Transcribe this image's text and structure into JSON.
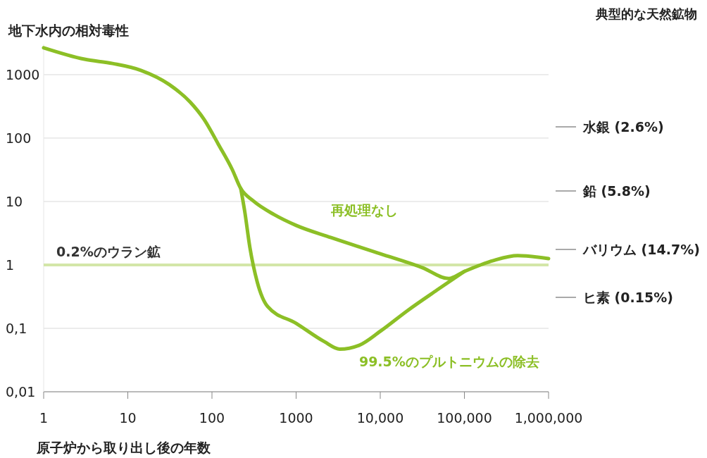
{
  "chart_data": {
    "type": "line",
    "ylabel": "地下水内の相対毒性",
    "xlabel": "原子炉から取り出し後の年数",
    "log": "xy",
    "grid": "y",
    "marker": "none",
    "line_style": "solid",
    "xlim": [
      1,
      1000000
    ],
    "xticks": [
      1,
      10,
      100,
      1000,
      {
        "value": 10000,
        "label": "10,000"
      },
      {
        "value": 100000,
        "label": "100,000"
      },
      {
        "value": 1000000,
        "label": "1,000,000"
      }
    ],
    "ylim": [
      0.01,
      3000
    ],
    "yticks": [
      {
        "value": 0.01,
        "label": "0,01"
      },
      {
        "value": 0.1,
        "label": "0,1"
      },
      1,
      10,
      100,
      1000
    ],
    "series": [
      {
        "name": "再処理なし",
        "color": "#8cbf26",
        "x": [
          1,
          3.06,
          6.6,
          14.3,
          31,
          55,
          81,
          119,
          174,
          220,
          310,
          550,
          1000,
          2600,
          10000,
          32000,
          65000,
          100000,
          220000,
          430000,
          1000000
        ],
        "values": [
          2650,
          1750,
          1500,
          1170,
          700,
          370,
          195,
          80,
          32,
          16,
          10.2,
          6.2,
          4.2,
          2.7,
          1.5,
          0.9,
          0.61,
          0.79,
          1.17,
          1.4,
          1.26
        ]
      },
      {
        "name": "99.5%のプルトニウムの除去",
        "color": "#8cbf26",
        "x": [
          220,
          245,
          282,
          345,
          460,
          1000,
          2150,
          3300,
          5600,
          10000,
          21000,
          47000,
          100000
        ],
        "values": [
          16,
          7,
          1.9,
          0.54,
          0.22,
          0.12,
          0.062,
          0.047,
          0.054,
          0.09,
          0.19,
          0.4,
          0.79
        ]
      }
    ],
    "ref_lines": [
      {
        "axis": "y",
        "value": 1,
        "label": "0.2%のウラン鉱",
        "color": "#d3e6a8"
      }
    ],
    "annotations": [
      "典型的な天然鉱物",
      "水銀 (2.6%)",
      "鉛 (5.8%)",
      "バリウム (14.7%)",
      "ヒ素 (0.15%)"
    ]
  }
}
